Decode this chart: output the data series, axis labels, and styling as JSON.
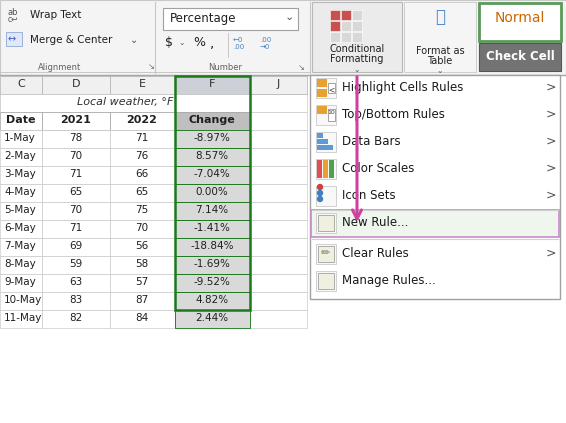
{
  "wrap_text": "Wrap Text",
  "merge_center": "Merge & Center",
  "percentage_label": "Percentage",
  "number_label": "Number",
  "conditional_label": "Conditional\nFormatting",
  "format_table_label": "Format as\nTable",
  "normal_label": "Normal",
  "check_cell_label": "Check Cell",
  "merged_header": "Local weather, °F",
  "table_headers": [
    "Date",
    "2021",
    "2022",
    "Change"
  ],
  "dates": [
    "1-May",
    "2-May",
    "3-May",
    "4-May",
    "5-May",
    "6-May",
    "7-May",
    "8-May",
    "9-May",
    "10-May",
    "11-May"
  ],
  "val2021": [
    78,
    70,
    71,
    65,
    70,
    71,
    69,
    59,
    63,
    83,
    82
  ],
  "val2022": [
    71,
    76,
    66,
    65,
    75,
    70,
    56,
    58,
    57,
    87,
    84
  ],
  "changes": [
    "-8.97%",
    "8.57%",
    "-7.04%",
    "0.00%",
    "7.14%",
    "-1.41%",
    "-18.84%",
    "-1.69%",
    "-9.52%",
    "4.82%",
    "2.44%"
  ],
  "dropdown_items": [
    "Highlight Cells Rules",
    "Top/Bottom Rules",
    "Data Bars",
    "Color Scales",
    "Icon Sets",
    "New Rule...",
    "Clear Rules",
    "Manage Rules..."
  ],
  "dropdown_has_arrow": [
    true,
    true,
    true,
    true,
    true,
    false,
    true,
    false
  ],
  "arrow_color": "#d040a0"
}
